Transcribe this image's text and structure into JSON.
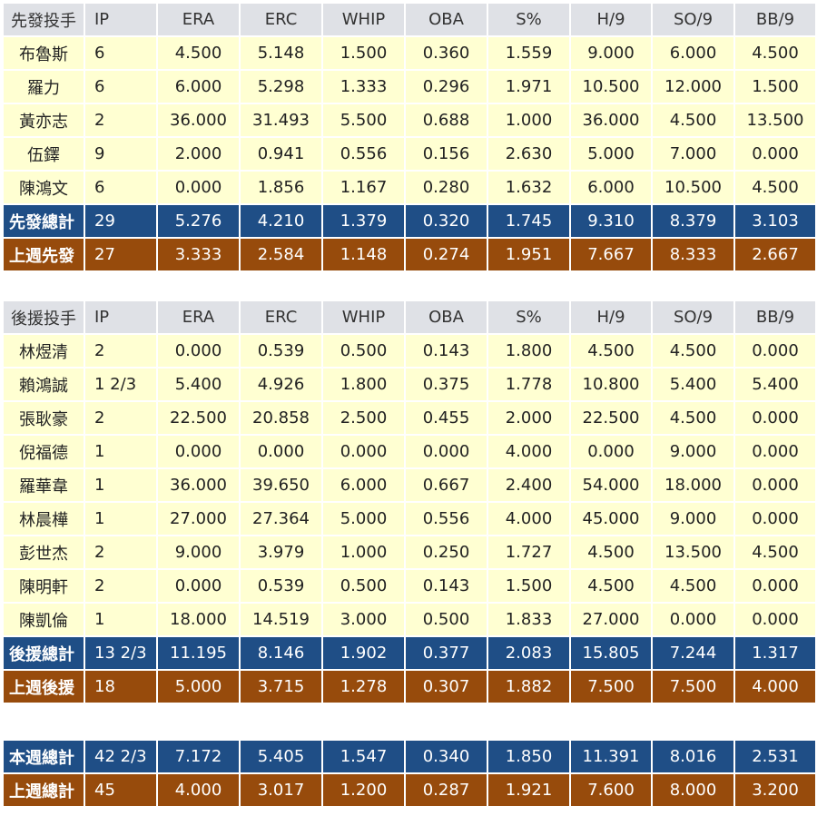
{
  "tables": [
    {
      "header": [
        "先發投手",
        "IP",
        "ERA",
        "ERC",
        "WHIP",
        "OBA",
        "S%",
        "H/9",
        "SO/9",
        "BB/9"
      ],
      "rows": [
        [
          "布魯斯",
          "6",
          "4.500",
          "5.148",
          "1.500",
          "0.360",
          "1.559",
          "9.000",
          "6.000",
          "4.500"
        ],
        [
          "羅力",
          "6",
          "6.000",
          "5.298",
          "1.333",
          "0.296",
          "1.971",
          "10.500",
          "12.000",
          "1.500"
        ],
        [
          "黃亦志",
          "2",
          "36.000",
          "31.493",
          "5.500",
          "0.688",
          "1.000",
          "36.000",
          "4.500",
          "13.500"
        ],
        [
          "伍鐸",
          "9",
          "2.000",
          "0.941",
          "0.556",
          "0.156",
          "2.630",
          "5.000",
          "7.000",
          "0.000"
        ],
        [
          "陳鴻文",
          "6",
          "0.000",
          "1.856",
          "1.167",
          "0.280",
          "1.632",
          "6.000",
          "10.500",
          "4.500"
        ]
      ],
      "summary": [
        {
          "color": "#1f4e86",
          "cells": [
            "先發總計",
            "29",
            "5.276",
            "4.210",
            "1.379",
            "0.320",
            "1.745",
            "9.310",
            "8.379",
            "3.103"
          ]
        },
        {
          "color": "#974b0c",
          "cells": [
            "上週先發",
            "27",
            "3.333",
            "2.584",
            "1.148",
            "0.274",
            "1.951",
            "7.667",
            "8.333",
            "2.667"
          ]
        }
      ]
    },
    {
      "header": [
        "後援投手",
        "IP",
        "ERA",
        "ERC",
        "WHIP",
        "OBA",
        "S%",
        "H/9",
        "SO/9",
        "BB/9"
      ],
      "rows": [
        [
          "林煜清",
          "2",
          "0.000",
          "0.539",
          "0.500",
          "0.143",
          "1.800",
          "4.500",
          "4.500",
          "0.000"
        ],
        [
          "賴鴻誠",
          "1 2/3",
          "5.400",
          "4.926",
          "1.800",
          "0.375",
          "1.778",
          "10.800",
          "5.400",
          "5.400"
        ],
        [
          "張耿豪",
          "2",
          "22.500",
          "20.858",
          "2.500",
          "0.455",
          "2.000",
          "22.500",
          "4.500",
          "0.000"
        ],
        [
          "倪福德",
          "1",
          "0.000",
          "0.000",
          "0.000",
          "0.000",
          "4.000",
          "0.000",
          "9.000",
          "0.000"
        ],
        [
          "羅華韋",
          "1",
          "36.000",
          "39.650",
          "6.000",
          "0.667",
          "2.400",
          "54.000",
          "18.000",
          "0.000"
        ],
        [
          "林晨樺",
          "1",
          "27.000",
          "27.364",
          "5.000",
          "0.556",
          "4.000",
          "45.000",
          "9.000",
          "0.000"
        ],
        [
          "彭世杰",
          "2",
          "9.000",
          "3.979",
          "1.000",
          "0.250",
          "1.727",
          "4.500",
          "13.500",
          "4.500"
        ],
        [
          "陳明軒",
          "2",
          "0.000",
          "0.539",
          "0.500",
          "0.143",
          "1.500",
          "4.500",
          "4.500",
          "0.000"
        ],
        [
          "陳凱倫",
          "1",
          "18.000",
          "14.519",
          "3.000",
          "0.500",
          "1.833",
          "27.000",
          "0.000",
          "0.000"
        ]
      ],
      "summary": [
        {
          "color": "#1f4e86",
          "cells": [
            "後援總計",
            "13 2/3",
            "11.195",
            "8.146",
            "1.902",
            "0.377",
            "2.083",
            "15.805",
            "7.244",
            "1.317"
          ]
        },
        {
          "color": "#974b0c",
          "cells": [
            "上週後援",
            "18",
            "5.000",
            "3.715",
            "1.278",
            "0.307",
            "1.882",
            "7.500",
            "7.500",
            "4.000"
          ]
        }
      ]
    },
    {
      "summary": [
        {
          "color": "#1f4e86",
          "cells": [
            "本週總計",
            "42 2/3",
            "7.172",
            "5.405",
            "1.547",
            "0.340",
            "1.850",
            "11.391",
            "8.016",
            "2.531"
          ]
        },
        {
          "color": "#974b0c",
          "cells": [
            "上週總計",
            "45",
            "4.000",
            "3.017",
            "1.200",
            "0.287",
            "1.921",
            "7.600",
            "8.000",
            "3.200"
          ]
        }
      ]
    }
  ]
}
